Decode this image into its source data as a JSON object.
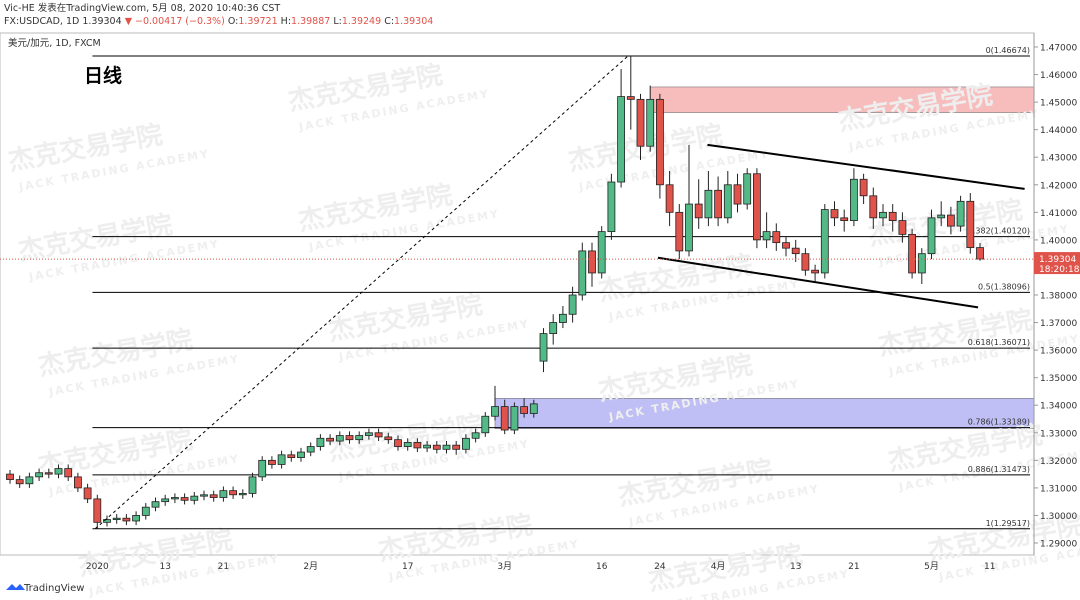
{
  "header": {
    "line1": "Vic-HE 发表在TradingView.com, 5月 08, 2020 10:40:36 CST",
    "symbol": "FX:USDCAD, 1D",
    "change": "▼ −0.00417 (−0.3%)",
    "ohlc_labels": [
      "O:",
      "H:",
      "L:",
      "C:"
    ]
  },
  "footer": "TradingView",
  "watermark": {
    "cn": "杰克交易学院",
    "en": "JACK TRADING ACADEMY"
  },
  "chart_data": {
    "type": "candlestick",
    "title": "日线",
    "legend": "美元/加元, 1D, FXCM",
    "countdown": "18:20:18",
    "up_color": "#53b987",
    "down_color": "#e0534a",
    "border_color": "#222",
    "categories": [
      null,
      null,
      null,
      null,
      null,
      null,
      null,
      null,
      null,
      "2020",
      null,
      null,
      null,
      null,
      null,
      null,
      "13",
      null,
      null,
      null,
      null,
      null,
      "21",
      null,
      null,
      null,
      null,
      null,
      null,
      null,
      null,
      "2月",
      null,
      null,
      null,
      null,
      null,
      null,
      null,
      null,
      null,
      "17",
      null,
      null,
      null,
      null,
      null,
      null,
      null,
      null,
      null,
      "3月",
      null,
      null,
      null,
      null,
      null,
      null,
      null,
      null,
      null,
      "16",
      null,
      null,
      null,
      null,
      null,
      "24",
      null,
      null,
      null,
      null,
      null,
      "4月",
      null,
      null,
      null,
      null,
      null,
      null,
      null,
      "13",
      null,
      null,
      null,
      null,
      null,
      "21",
      null,
      null,
      null,
      null,
      null,
      null,
      null,
      "5月",
      null,
      null,
      null,
      null,
      null,
      "11"
    ],
    "open": [
      1.315,
      1.313,
      1.3115,
      1.314,
      1.3155,
      1.315,
      1.317,
      1.314,
      1.31,
      1.306,
      1.2975,
      1.2985,
      1.299,
      1.298,
      1.3,
      1.303,
      1.305,
      1.306,
      1.3065,
      1.3055,
      1.307,
      1.3075,
      1.3065,
      1.309,
      1.3075,
      1.308,
      1.314,
      1.32,
      1.3185,
      1.322,
      1.321,
      1.323,
      1.325,
      1.328,
      1.327,
      1.329,
      1.3275,
      1.329,
      1.33,
      1.3285,
      1.3275,
      1.325,
      1.3265,
      1.3245,
      1.3255,
      1.324,
      1.3255,
      1.324,
      1.328,
      1.33,
      1.336,
      1.3395,
      1.331,
      1.3395,
      1.337,
      1.356,
      1.366,
      1.37,
      1.373,
      1.38,
      1.396,
      1.388,
      1.403,
      1.421,
      1.452,
      1.451,
      1.434,
      1.451,
      1.42,
      1.41,
      1.396,
      1.413,
      1.408,
      1.418,
      1.408,
      1.42,
      1.413,
      1.424,
      1.4,
      1.403,
      1.399,
      1.397,
      1.395,
      1.389,
      1.388,
      1.411,
      1.408,
      1.407,
      1.422,
      1.416,
      1.408,
      1.41,
      1.407,
      1.402,
      1.388,
      1.395,
      1.408,
      1.409,
      1.405,
      1.414,
      1.39721,
      null
    ],
    "high": [
      1.3165,
      1.3145,
      1.3155,
      1.317,
      1.317,
      1.3185,
      1.3185,
      1.3155,
      1.3115,
      1.3075,
      1.3,
      1.3005,
      1.3005,
      1.3015,
      1.3045,
      1.3065,
      1.3075,
      1.308,
      1.308,
      1.3085,
      1.309,
      1.309,
      1.3105,
      1.3105,
      1.3095,
      1.3155,
      1.3215,
      1.3215,
      1.3235,
      1.3235,
      1.3245,
      1.3265,
      1.3295,
      1.3295,
      1.3305,
      1.3305,
      1.3305,
      1.3315,
      1.3315,
      1.33,
      1.329,
      1.328,
      1.328,
      1.327,
      1.327,
      1.327,
      1.327,
      1.3295,
      1.3315,
      1.3375,
      1.347,
      1.342,
      1.341,
      1.3425,
      1.342,
      1.368,
      1.373,
      1.376,
      1.383,
      1.399,
      1.399,
      1.405,
      1.424,
      1.462,
      1.4667,
      1.453,
      1.456,
      1.453,
      1.425,
      1.413,
      1.4345,
      1.422,
      1.425,
      1.423,
      1.425,
      1.424,
      1.426,
      1.426,
      1.41,
      1.406,
      1.401,
      1.4,
      1.397,
      1.391,
      1.413,
      1.414,
      1.411,
      1.426,
      1.424,
      1.419,
      1.413,
      1.413,
      1.41,
      1.404,
      1.397,
      1.411,
      1.414,
      1.412,
      1.416,
      1.417,
      1.39887,
      null
    ],
    "low": [
      1.3115,
      1.31,
      1.31,
      1.3125,
      1.3135,
      1.3135,
      1.3125,
      1.3085,
      1.3045,
      1.2952,
      1.296,
      1.297,
      1.2965,
      1.2965,
      1.2985,
      1.3015,
      1.3035,
      1.3045,
      1.304,
      1.304,
      1.3055,
      1.305,
      1.305,
      1.306,
      1.306,
      1.3065,
      1.3125,
      1.317,
      1.317,
      1.3195,
      1.3195,
      1.3215,
      1.3235,
      1.3255,
      1.3255,
      1.326,
      1.326,
      1.3275,
      1.327,
      1.326,
      1.3235,
      1.3235,
      1.323,
      1.323,
      1.3225,
      1.3225,
      1.322,
      1.3225,
      1.3265,
      1.3285,
      1.3345,
      1.3295,
      1.3295,
      1.3355,
      1.3355,
      1.352,
      1.362,
      1.368,
      1.37,
      1.378,
      1.383,
      1.386,
      1.4,
      1.419,
      1.44,
      1.429,
      1.432,
      1.415,
      1.405,
      1.393,
      1.394,
      1.404,
      1.405,
      1.405,
      1.406,
      1.41,
      1.411,
      1.397,
      1.397,
      1.396,
      1.394,
      1.392,
      1.387,
      1.385,
      1.386,
      1.405,
      1.403,
      1.405,
      1.413,
      1.404,
      1.405,
      1.403,
      1.399,
      1.386,
      1.384,
      1.393,
      1.405,
      1.402,
      1.403,
      1.395,
      1.39249,
      null
    ],
    "close": [
      1.313,
      1.3115,
      1.314,
      1.3155,
      1.315,
      1.317,
      1.314,
      1.31,
      1.306,
      1.2975,
      1.2985,
      1.299,
      1.298,
      1.3,
      1.303,
      1.305,
      1.306,
      1.3065,
      1.3055,
      1.307,
      1.3075,
      1.3065,
      1.309,
      1.3075,
      1.308,
      1.314,
      1.32,
      1.3185,
      1.322,
      1.321,
      1.323,
      1.325,
      1.328,
      1.327,
      1.329,
      1.3275,
      1.329,
      1.33,
      1.3285,
      1.3275,
      1.325,
      1.3265,
      1.3245,
      1.3255,
      1.324,
      1.3255,
      1.324,
      1.328,
      1.33,
      1.336,
      1.3395,
      1.331,
      1.3395,
      1.337,
      1.3405,
      1.366,
      1.37,
      1.373,
      1.38,
      1.396,
      1.388,
      1.403,
      1.421,
      1.452,
      1.451,
      1.434,
      1.451,
      1.42,
      1.41,
      1.396,
      1.413,
      1.408,
      1.418,
      1.408,
      1.42,
      1.413,
      1.424,
      1.4,
      1.403,
      1.399,
      1.397,
      1.395,
      1.389,
      1.388,
      1.411,
      1.408,
      1.407,
      1.422,
      1.416,
      1.408,
      1.41,
      1.407,
      1.402,
      1.388,
      1.395,
      1.408,
      1.409,
      1.405,
      1.414,
      1.39721,
      1.39304,
      null
    ],
    "ylim": [
      1.29,
      1.47
    ],
    "yticks": [
      {
        "value": 1.29,
        "label": "1.29000"
      },
      {
        "value": 1.3,
        "label": "1.30000"
      },
      {
        "value": 1.31,
        "label": "1.31000"
      },
      {
        "value": 1.32,
        "label": "1.32000"
      },
      {
        "value": 1.33,
        "label": "1.33000"
      },
      {
        "value": 1.34,
        "label": "1.34000"
      },
      {
        "value": 1.35,
        "label": "1.35000"
      },
      {
        "value": 1.36,
        "label": "1.36000"
      },
      {
        "value": 1.37,
        "label": "1.37000"
      },
      {
        "value": 1.38,
        "label": "1.38000"
      },
      {
        "value": 1.39,
        "label": "1.39000"
      },
      {
        "value": 1.4,
        "label": "1.40000"
      },
      {
        "value": 1.41,
        "label": "1.41000"
      },
      {
        "value": 1.42,
        "label": "1.42000"
      },
      {
        "value": 1.43,
        "label": "1.43000"
      },
      {
        "value": 1.44,
        "label": "1.44000"
      },
      {
        "value": 1.45,
        "label": "1.45000"
      },
      {
        "value": 1.46,
        "label": "1.46000"
      },
      {
        "value": 1.47,
        "label": "1.47000"
      }
    ],
    "fib_levels": [
      {
        "label": "0(1.46674)",
        "value": 1.46674
      },
      {
        "label": "0.382(1.40120)",
        "value": 1.4012
      },
      {
        "label": "0.5(1.38096)",
        "value": 1.38096
      },
      {
        "label": "0.618(1.36071)",
        "value": 1.36071
      },
      {
        "label": "0.786(1.33189)",
        "value": 1.33189
      },
      {
        "label": "0.886(1.31473)",
        "value": 1.31473
      },
      {
        "label": "1(1.29517)",
        "value": 1.29517
      }
    ],
    "zones": [
      {
        "color": "#f7b6b6",
        "start_index": 66,
        "low": 1.4462,
        "high": 1.4555
      },
      {
        "color": "#b9b9f5",
        "start_index": 50,
        "low": 1.3315,
        "high": 1.3425
      }
    ],
    "trend_lines": [
      {
        "x": [
          71.9,
          104.6
        ],
        "y": [
          1.4345,
          1.4185
        ],
        "dashed": false
      },
      {
        "x": [
          66.8,
          99.8
        ],
        "y": [
          1.3935,
          1.3755
        ],
        "dashed": false
      },
      {
        "x": [
          8.8,
          63.7
        ],
        "y": [
          1.2952,
          1.4667
        ],
        "dashed": true
      }
    ]
  }
}
